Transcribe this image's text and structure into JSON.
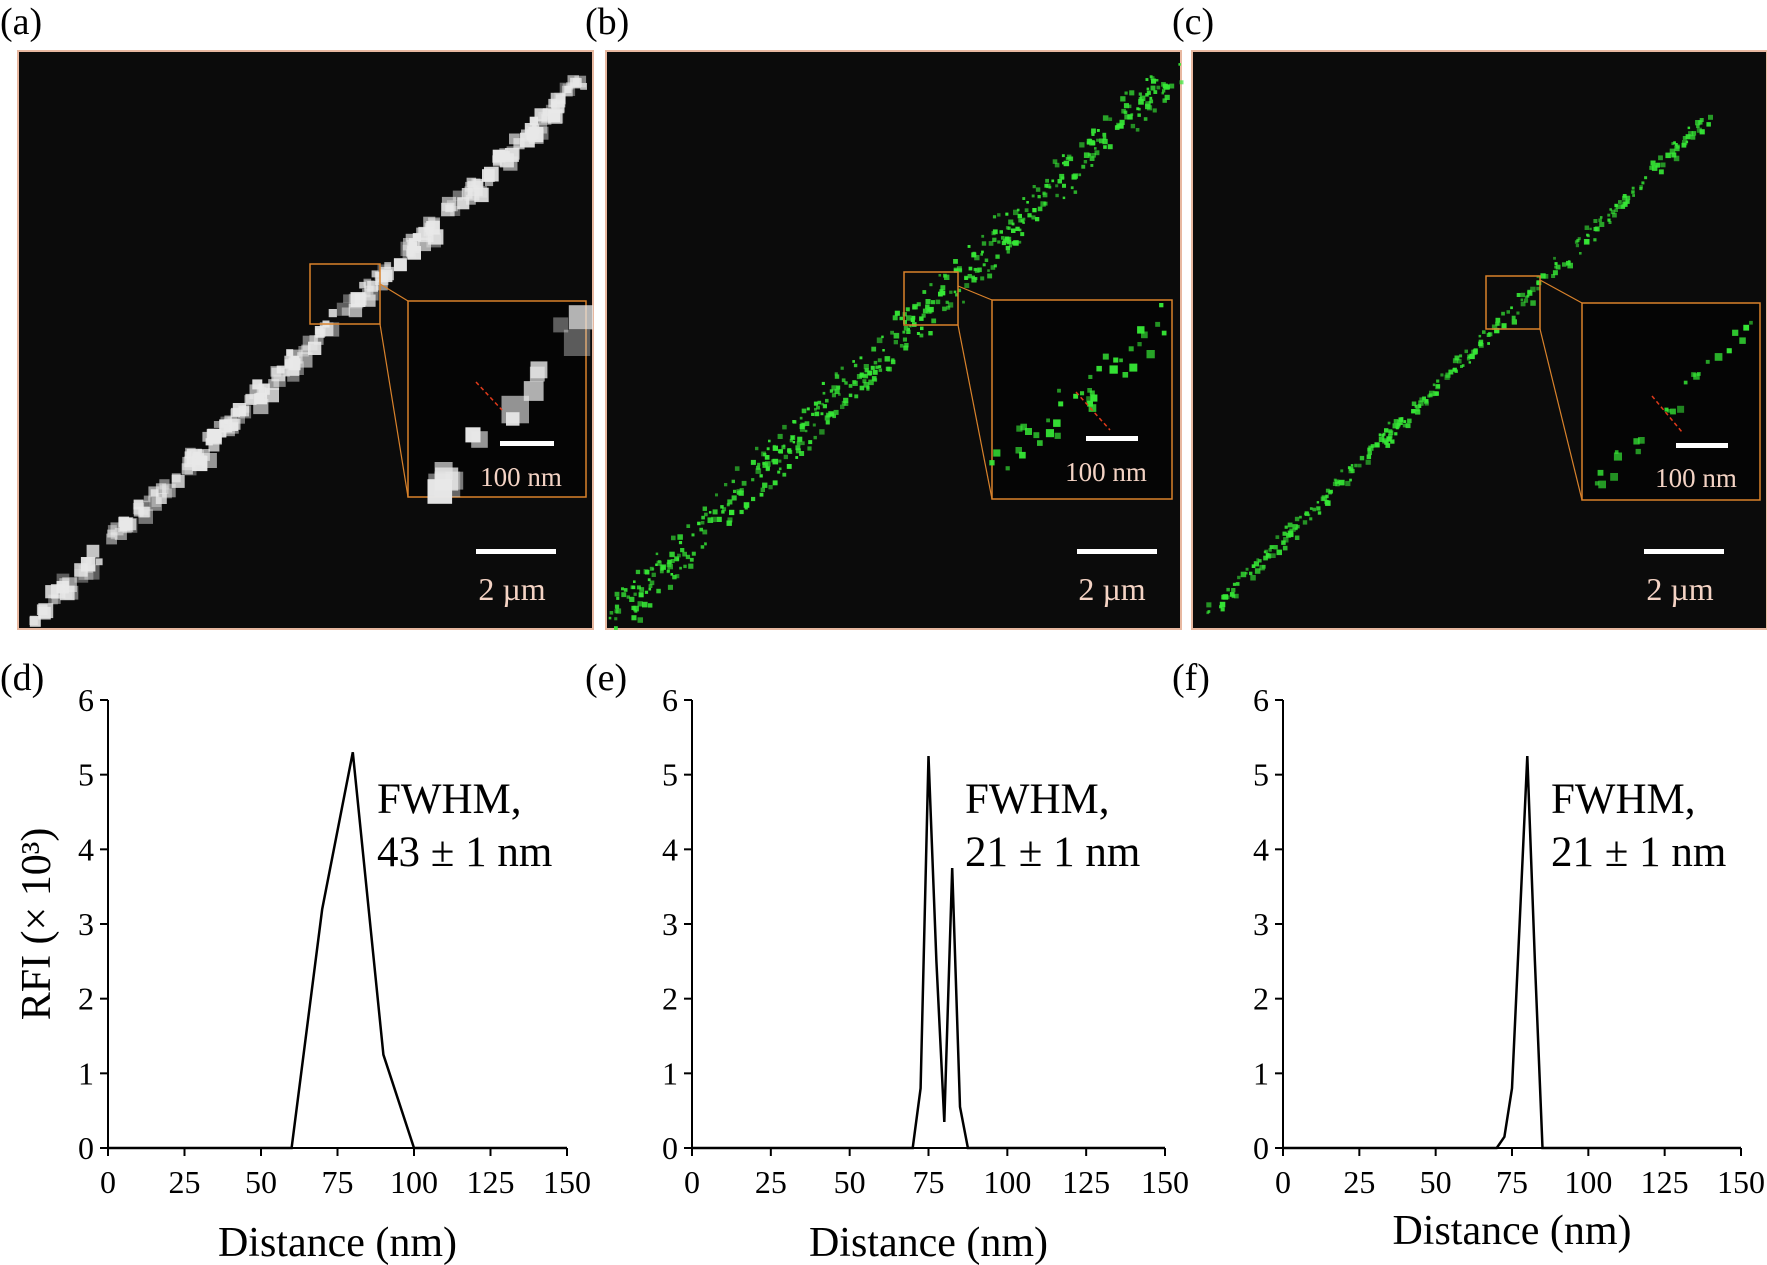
{
  "panels": {
    "a": {
      "label": "(a)",
      "scale_bar": "2 µm",
      "inset_scale": "100 nm"
    },
    "b": {
      "label": "(b)",
      "scale_bar": "2 µm",
      "inset_scale": "100 nm"
    },
    "c": {
      "label": "(c)",
      "scale_bar": "2 µm",
      "inset_scale": "100 nm"
    },
    "d": {
      "label": "(d)",
      "annotation_line1": "FWHM,",
      "annotation_line2": "43 ± 1 nm"
    },
    "e": {
      "label": "(e)",
      "annotation_line1": "FWHM,",
      "annotation_line2": "21 ± 1 nm"
    },
    "f": {
      "label": "(f)",
      "annotation_line1": "FWHM,",
      "annotation_line2": "21 ± 1 nm"
    }
  },
  "colors": {
    "micrograph_bg": "#0b0b0b",
    "inset_border": "#d9822b",
    "green_signal": "#36e836",
    "gray_signal": "#e8e8e8",
    "profile_line": "#e03a1a",
    "scale_text": "#f4d3c4",
    "axis": "#000000"
  },
  "chart_data": [
    {
      "type": "line",
      "panel": "d",
      "xlabel": "Distance (nm)",
      "ylabel": "RFI (× 10³)",
      "xlim": [
        0,
        150
      ],
      "ylim": [
        0,
        6
      ],
      "xticks": [
        "0",
        "25",
        "50",
        "75",
        "100",
        "125",
        "150"
      ],
      "yticks": [
        "0",
        "1",
        "2",
        "3",
        "4",
        "5",
        "6"
      ],
      "x": [
        0,
        60,
        70,
        80,
        90,
        100,
        150
      ],
      "y": [
        0,
        0,
        3.2,
        5.3,
        1.25,
        0,
        0
      ]
    },
    {
      "type": "line",
      "panel": "e",
      "xlabel": "Distance (nm)",
      "ylabel": "",
      "xlim": [
        0,
        150
      ],
      "ylim": [
        0,
        6
      ],
      "xticks": [
        "0",
        "25",
        "50",
        "75",
        "100",
        "125",
        "150"
      ],
      "yticks": [
        "0",
        "1",
        "2",
        "3",
        "4",
        "5",
        "6"
      ],
      "x": [
        0,
        70,
        72.5,
        75,
        77.5,
        80,
        82.5,
        85,
        87.5,
        150
      ],
      "y": [
        0,
        0,
        0.8,
        5.25,
        2.5,
        0.35,
        3.75,
        0.55,
        0,
        0
      ]
    },
    {
      "type": "line",
      "panel": "f",
      "xlabel": "Distance (nm)",
      "ylabel": "",
      "xlim": [
        0,
        150
      ],
      "ylim": [
        0,
        6
      ],
      "xticks": [
        "0",
        "25",
        "50",
        "75",
        "100",
        "125",
        "150"
      ],
      "yticks": [
        "0",
        "1",
        "2",
        "3",
        "4",
        "5",
        "6"
      ],
      "x": [
        0,
        70,
        72.5,
        75,
        77.5,
        80,
        82.5,
        85,
        150
      ],
      "y": [
        0,
        0,
        0.15,
        0.8,
        3.0,
        5.25,
        2.5,
        0,
        0
      ]
    }
  ]
}
